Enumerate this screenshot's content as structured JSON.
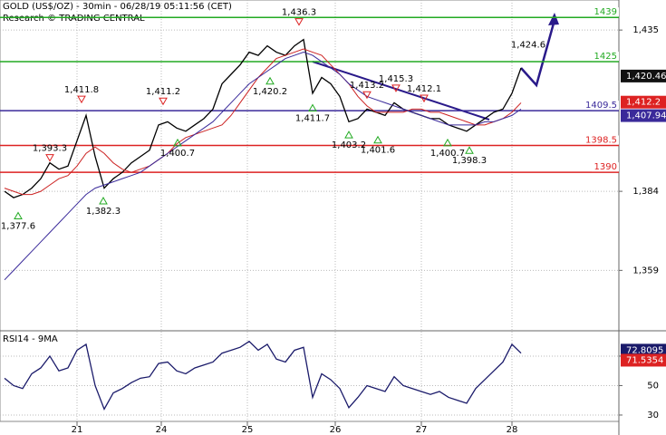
{
  "chart_data": [
    {
      "type": "line",
      "title": "GOLD (US$/OZ) - 30min - 06/28/19 05:11:56 (CET)",
      "subtitle": "Research © TRADING CENTRAL",
      "x": [
        0,
        1,
        2,
        3,
        4,
        5,
        6,
        7,
        8,
        9,
        10,
        11,
        12,
        13,
        14,
        15,
        16,
        17,
        18,
        19,
        20,
        21,
        22,
        23,
        24,
        25,
        26,
        27,
        28,
        29,
        30,
        31,
        32,
        33,
        34,
        35,
        36,
        37,
        38,
        39,
        40,
        41,
        42,
        43,
        44,
        45,
        46,
        47,
        48,
        49,
        50,
        51,
        52,
        53,
        54,
        55,
        56,
        57
      ],
      "xlim": [
        -0.5,
        67.8
      ],
      "series": [
        {
          "color": "#000000",
          "values": [
            1384,
            1382,
            1383,
            1385,
            1388,
            1393,
            1391,
            1392,
            1400,
            1408,
            1395,
            1385,
            1388,
            1390,
            1393,
            1395,
            1397,
            1405,
            1406,
            1404,
            1403,
            1405,
            1407,
            1410,
            1418,
            1421,
            1424,
            1428,
            1427,
            1430,
            1428,
            1427,
            1430,
            1432,
            1415,
            1420,
            1418,
            1414,
            1406,
            1407,
            1410,
            1409,
            1408,
            1412,
            1410,
            1409,
            1408,
            1407,
            1407,
            1405,
            1404,
            1403,
            1405,
            1407,
            1409,
            1410,
            1415,
            1423
          ]
        },
        {
          "color": "#cc2222",
          "values": [
            1385,
            1384,
            1383,
            1383,
            1384,
            1386,
            1388,
            1389,
            1392,
            1396,
            1398,
            1396,
            1393,
            1391,
            1390,
            1391,
            1392,
            1394,
            1396,
            1399,
            1401,
            1402,
            1403,
            1404,
            1405,
            1408,
            1412,
            1416,
            1420,
            1423,
            1426,
            1427,
            1428,
            1429,
            1428,
            1427,
            1424,
            1421,
            1418,
            1414,
            1411,
            1409,
            1409,
            1409,
            1409,
            1410,
            1410,
            1409,
            1409,
            1408,
            1407,
            1406,
            1405,
            1405,
            1406,
            1407,
            1409,
            1412
          ]
        },
        {
          "color": "#3a2a9a",
          "values": [
            1356,
            1359,
            1362,
            1365,
            1368,
            1371,
            1374,
            1377,
            1380,
            1383,
            1385,
            1386,
            1387,
            1388,
            1389,
            1390,
            1392,
            1394,
            1396,
            1398,
            1400,
            1402,
            1404,
            1406,
            1409,
            1412,
            1415,
            1418,
            1420,
            1422,
            1424,
            1426,
            1427,
            1428,
            1427,
            1425,
            1423,
            1421,
            1418,
            1416,
            1414,
            1413,
            1412,
            1411,
            1410,
            1409,
            1408,
            1407,
            1406,
            1405,
            1405,
            1405,
            1405,
            1406,
            1406,
            1407,
            1408,
            1410
          ]
        }
      ],
      "ylim": [
        1339.9,
        1444.5
      ],
      "yticks": [
        {
          "value": 1435,
          "label": "1,435"
        },
        {
          "value": 1384,
          "label": "1,384"
        },
        {
          "value": 1359,
          "label": "1,359"
        }
      ],
      "levels": [
        1439,
        1425,
        1409.5,
        1398.5,
        1390
      ],
      "level_colors": [
        "#22aa22",
        "#22aa22",
        "#3a2a9a",
        "#dd2222",
        "#dd2222"
      ],
      "highs": [
        {
          "x": 8.5,
          "value": 1411.8,
          "label": "1,411.8"
        },
        {
          "x": 17.5,
          "value": 1411.2,
          "label": "1,411.2"
        },
        {
          "x": 5,
          "value": 1393.3,
          "label": "1,393.3"
        },
        {
          "x": 32.5,
          "value": 1436.3,
          "label": "1,436.3"
        },
        {
          "x": 40,
          "value": 1413.2,
          "label": "1,413.2"
        },
        {
          "x": 43.2,
          "value": 1415.3,
          "label": "1,415.3"
        },
        {
          "x": 46.3,
          "value": 1412.1,
          "label": "1,412.1"
        }
      ],
      "lows": [
        {
          "x": 1.5,
          "value": 1377.6,
          "label": "1,377.6"
        },
        {
          "x": 10.9,
          "value": 1382.3,
          "label": "1,382.3"
        },
        {
          "x": 19.1,
          "value": 1400.7,
          "label": "1,400.7"
        },
        {
          "x": 29.3,
          "value": 1420.2,
          "label": "1,420.2"
        },
        {
          "x": 34,
          "value": 1411.7,
          "label": "1,411.7"
        },
        {
          "x": 38,
          "value": 1403.2,
          "label": "1,403.2"
        },
        {
          "x": 41.2,
          "value": 1401.6,
          "label": "1,401.6"
        },
        {
          "x": 48.9,
          "value": 1400.7,
          "label": "1,400.7"
        },
        {
          "x": 51.3,
          "value": 1398.3,
          "label": "1,398.3"
        }
      ],
      "target": {
        "x": 57.8,
        "value": 1424.6,
        "label": "1,424.6"
      },
      "price_boxes": [
        {
          "value": 1420.46,
          "label": "1,420.46",
          "color": "#111111"
        },
        {
          "value": 1412.2,
          "label": "1,412.2",
          "color": "#dd2222"
        },
        {
          "value": 1407.94,
          "label": "1,407.94",
          "color": "#3a2a9a"
        }
      ]
    },
    {
      "type": "line",
      "title": "RSI14 - 9MA",
      "x": [
        0,
        1,
        2,
        3,
        4,
        5,
        6,
        7,
        8,
        9,
        10,
        11,
        12,
        13,
        14,
        15,
        16,
        17,
        18,
        19,
        20,
        21,
        22,
        23,
        24,
        25,
        26,
        27,
        28,
        29,
        30,
        31,
        32,
        33,
        34,
        35,
        36,
        37,
        38,
        39,
        40,
        41,
        42,
        43,
        44,
        45,
        46,
        47,
        48,
        49,
        50,
        51,
        52,
        53,
        54,
        55,
        56,
        57
      ],
      "xlim": [
        -0.5,
        67.8
      ],
      "series": [
        {
          "color": "#1a1a6a",
          "values": [
            55,
            50,
            48,
            58,
            62,
            70,
            60,
            62,
            74,
            78,
            50,
            34,
            45,
            48,
            52,
            55,
            56,
            65,
            66,
            60,
            58,
            62,
            64,
            66,
            72,
            74,
            76,
            80,
            74,
            78,
            68,
            66,
            74,
            76,
            42,
            58,
            54,
            48,
            35,
            42,
            50,
            48,
            46,
            56,
            50,
            48,
            46,
            44,
            46,
            42,
            40,
            38,
            48,
            54,
            60,
            66,
            78,
            72
          ]
        }
      ],
      "ylim": [
        22.6,
        87.2
      ],
      "yticks": [
        70,
        50,
        30
      ],
      "xticks": [
        {
          "value": 8,
          "label": "21"
        },
        {
          "value": 17.3,
          "label": "24"
        },
        {
          "value": 26.8,
          "label": "25"
        },
        {
          "value": 36.5,
          "label": "26"
        },
        {
          "value": 46,
          "label": "27"
        },
        {
          "value": 56,
          "label": "28"
        }
      ],
      "boxes": [
        {
          "value": 72.8095,
          "color": "#1a1a6a"
        },
        {
          "value": 71.5354,
          "color": "#dd2222"
        }
      ]
    }
  ]
}
